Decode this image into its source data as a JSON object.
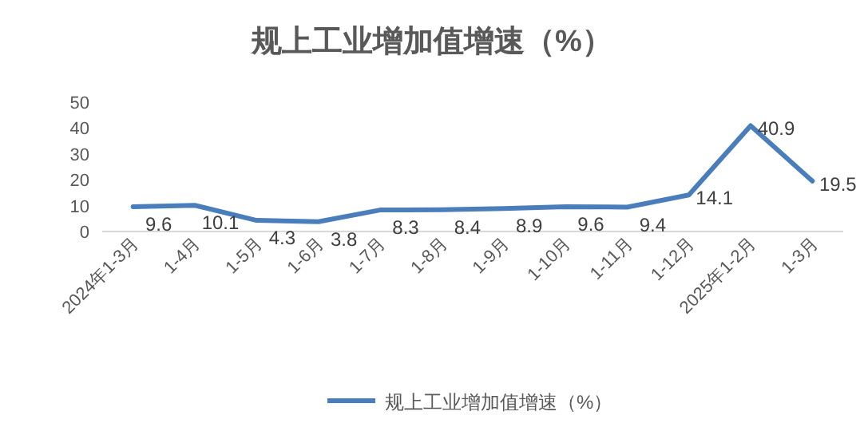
{
  "chart_data": {
    "type": "line",
    "title": "规上工业增加值增速（%）",
    "categories": [
      "2024年1-3月",
      "1-4月",
      "1-5月",
      "1-6月",
      "1-7月",
      "1-8月",
      "1-9月",
      "1-10月",
      "1-11月",
      "1-12月",
      "2025年1-2月",
      "1-3月"
    ],
    "series": [
      {
        "name": "规上工业增加值增速（%）",
        "color": "#4a7ebb",
        "values": [
          9.6,
          10.1,
          4.3,
          3.8,
          8.3,
          8.4,
          8.9,
          9.6,
          9.4,
          14.1,
          40.9,
          19.5
        ]
      }
    ],
    "ylim": [
      0,
      50
    ],
    "yticks": [
      0,
      10,
      20,
      30,
      40,
      50
    ],
    "data_labels": true,
    "legend": "bottom",
    "grid": false,
    "marker": "none",
    "line_style": "solid"
  }
}
